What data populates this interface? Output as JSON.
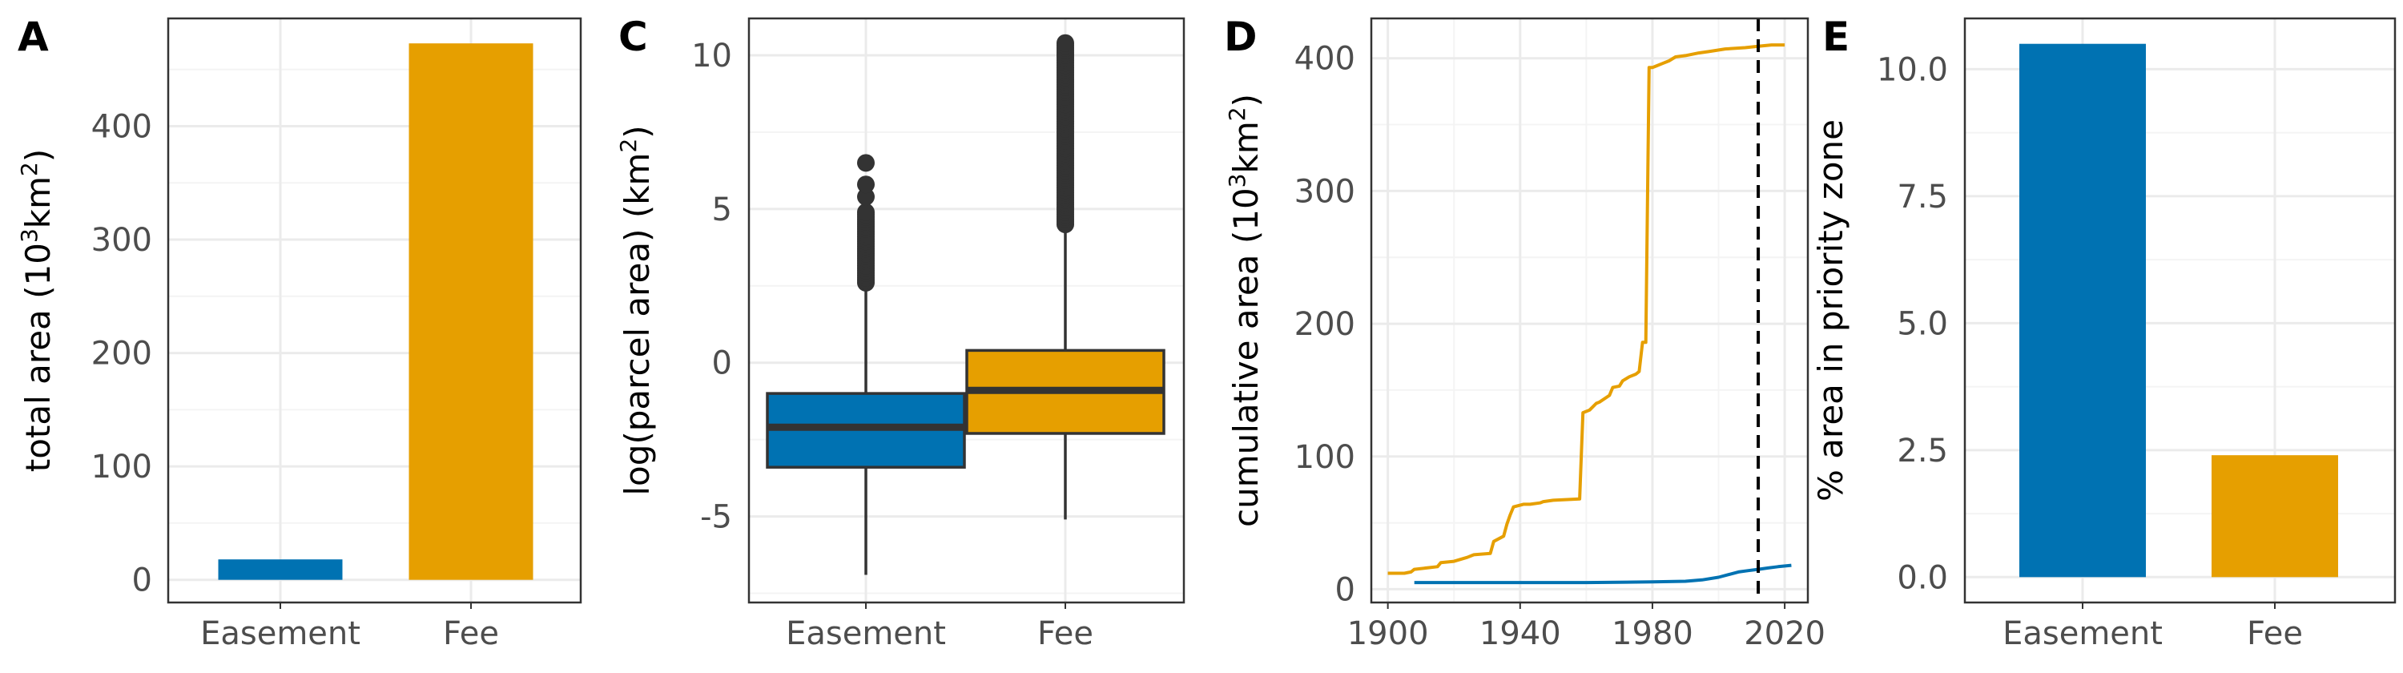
{
  "colors": {
    "easement": "#0072B2",
    "fee": "#E69F00",
    "box_line": "#333333",
    "grid_major": "#ebebeb",
    "grid_minor": "#f4f4f4",
    "axis_text": "#4d4d4d"
  },
  "panels": [
    {
      "label": "A"
    },
    {
      "label": "C"
    },
    {
      "label": "D"
    },
    {
      "label": "E"
    }
  ],
  "chart_data": [
    {
      "panel": "A",
      "type": "bar",
      "categories": [
        "Easement",
        "Fee"
      ],
      "values": [
        18,
        473
      ],
      "colors": [
        "#0072B2",
        "#E69F00"
      ],
      "xlabel": "",
      "ylabel": "total area (10³km²)",
      "ylabel_parts": [
        "total area (10",
        "3",
        "km",
        "2",
        ")"
      ],
      "ylim": [
        -20,
        495
      ],
      "yticks": [
        0,
        100,
        200,
        300,
        400
      ],
      "ytick_labels": [
        "0",
        "100",
        "200",
        "300",
        "400"
      ],
      "grid": true
    },
    {
      "panel": "C",
      "type": "box",
      "categories": [
        "Easement",
        "Fee"
      ],
      "colors": [
        "#0072B2",
        "#E69F00"
      ],
      "boxes": [
        {
          "name": "Easement",
          "q1": -3.4,
          "median": -2.1,
          "q3": -1.0,
          "whisker_low": -6.9,
          "whisker_high": 2.5,
          "outliers_dense_range": [
            2.6,
            4.9
          ],
          "outliers_sparse": [
            5.4,
            5.8,
            6.5
          ]
        },
        {
          "name": "Fee",
          "q1": -2.3,
          "median": -0.9,
          "q3": 0.4,
          "whisker_low": -5.1,
          "whisker_high": 4.4,
          "outliers_dense_range": [
            4.5,
            10.4
          ],
          "outliers_sparse": []
        }
      ],
      "xlabel": "",
      "ylabel": "log(parcel area) (km²)",
      "ylabel_parts": [
        "log(parcel area) (km",
        "2",
        ")"
      ],
      "ylim": [
        -7.8,
        11.2
      ],
      "yticks": [
        -5,
        0,
        5,
        10
      ],
      "ytick_labels": [
        "-5",
        "0",
        "5",
        "10"
      ],
      "grid": true
    },
    {
      "panel": "D",
      "type": "line",
      "series": [
        {
          "name": "Fee",
          "color": "#E69F00",
          "x": [
            1900,
            1905,
            1907,
            1908,
            1915,
            1916,
            1920,
            1924,
            1926,
            1931,
            1932,
            1935,
            1936,
            1937,
            1938,
            1941,
            1943,
            1946,
            1947,
            1950,
            1958,
            1959,
            1961,
            1963,
            1964,
            1967,
            1968,
            1970,
            1971,
            1973,
            1975,
            1976,
            1977,
            1978,
            1979,
            1980,
            1981,
            1983,
            1985,
            1987,
            1990,
            1994,
            1997,
            2002,
            2008,
            2012,
            2016,
            2020
          ],
          "y": [
            12,
            12,
            13,
            15,
            17,
            20,
            21,
            24,
            26,
            27,
            36,
            40,
            49,
            56,
            62,
            64,
            64,
            65,
            66,
            67,
            68,
            133,
            135,
            140,
            141,
            146,
            152,
            153,
            157,
            160,
            162,
            164,
            186,
            186,
            393,
            393,
            394,
            396,
            398,
            401,
            402,
            404,
            405,
            407,
            408,
            409,
            410,
            410
          ]
        },
        {
          "name": "Easement",
          "color": "#0072B2",
          "x": [
            1908,
            1920,
            1940,
            1960,
            1980,
            1990,
            1995,
            2000,
            2003,
            2006,
            2009,
            2012,
            2015,
            2018,
            2022
          ],
          "y": [
            5,
            5,
            5,
            5,
            5.5,
            6,
            7,
            9,
            11,
            13,
            14,
            15,
            16,
            17,
            18
          ]
        }
      ],
      "vline": {
        "x": 2012,
        "style": "dashed"
      },
      "xlabel": "",
      "ylabel": "cumulative area (10³km²)",
      "ylabel_parts": [
        "cumulative area (10",
        "3",
        "km",
        "2",
        ")"
      ],
      "xlim": [
        1895,
        2027
      ],
      "ylim": [
        -10,
        430
      ],
      "xticks": [
        1900,
        1940,
        1980,
        2020
      ],
      "xtick_labels": [
        "1900",
        "1940",
        "1980",
        "2020"
      ],
      "yticks": [
        0,
        100,
        200,
        300,
        400
      ],
      "ytick_labels": [
        "0",
        "100",
        "200",
        "300",
        "400"
      ],
      "grid": true
    },
    {
      "panel": "E",
      "type": "bar",
      "categories": [
        "Easement",
        "Fee"
      ],
      "values": [
        10.5,
        2.4
      ],
      "colors": [
        "#0072B2",
        "#E69F00"
      ],
      "xlabel": "",
      "ylabel": "% area in priority zone",
      "ylim": [
        -0.5,
        11.0
      ],
      "yticks": [
        0,
        2.5,
        5.0,
        7.5,
        10.0
      ],
      "ytick_labels": [
        "0.0",
        "2.5",
        "5.0",
        "7.5",
        "10.0"
      ],
      "grid": true
    }
  ]
}
